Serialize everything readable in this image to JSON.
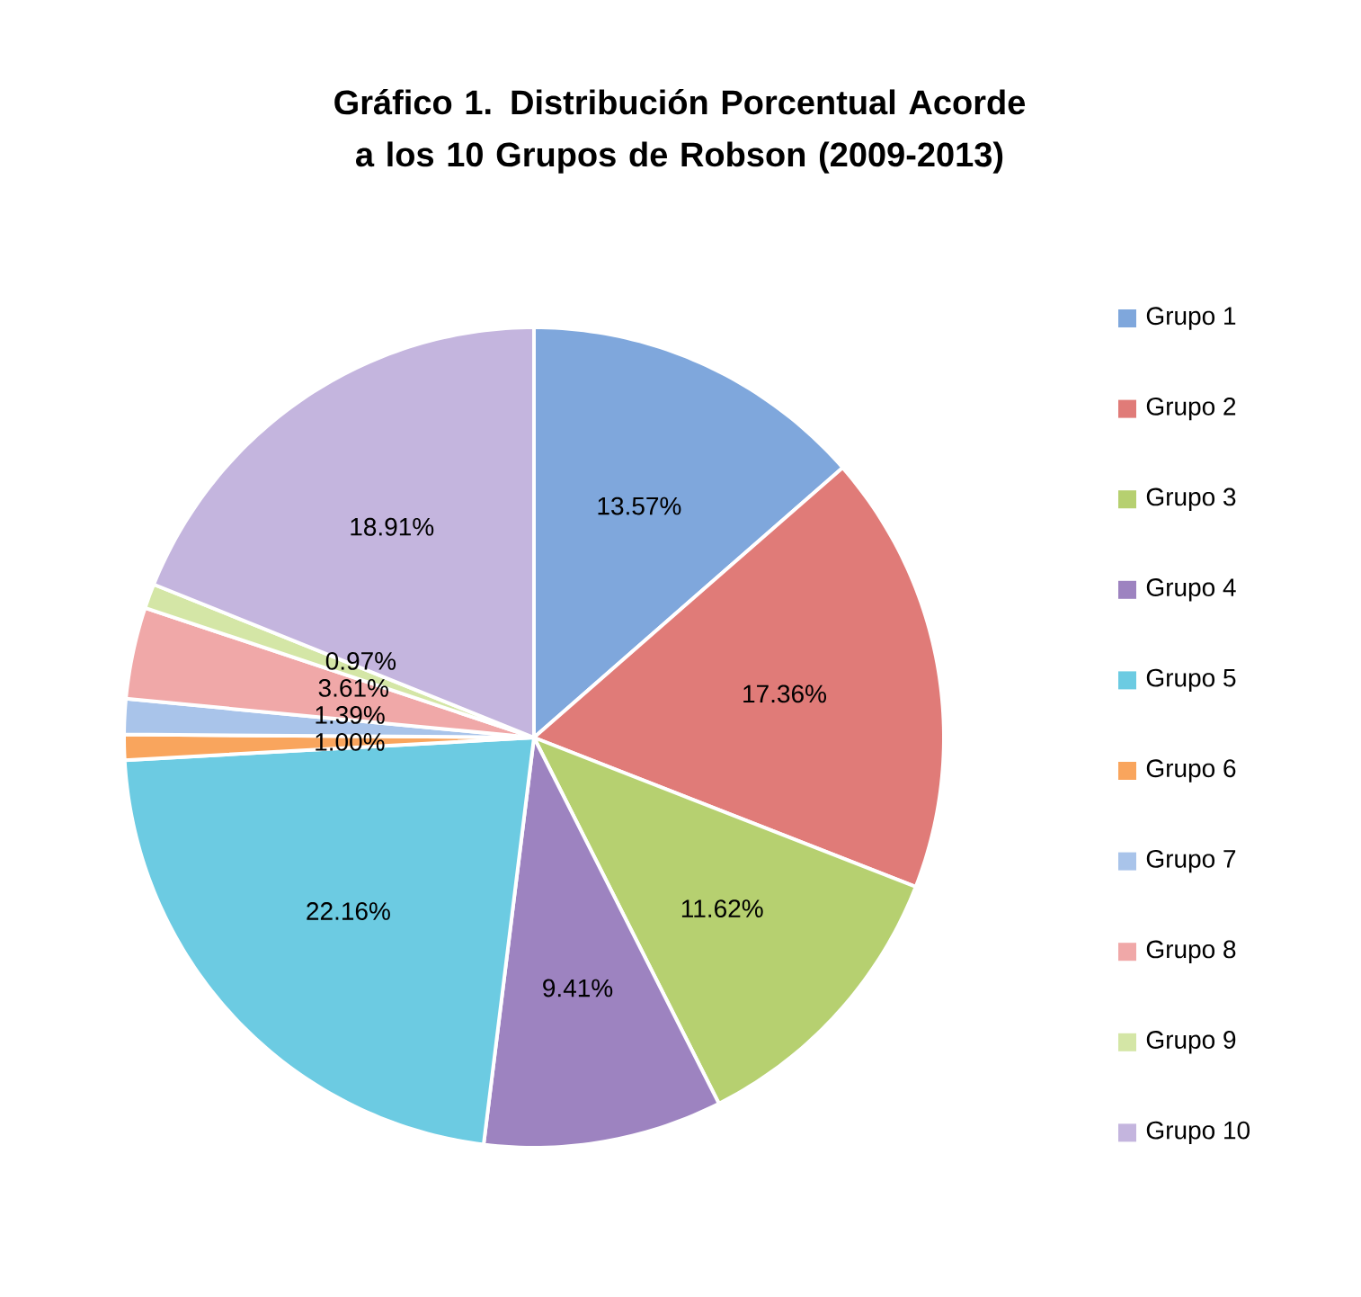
{
  "chart_data": {
    "type": "pie",
    "title": "Gráfico 1. Distribución Porcentual Acorde a los 10 Grupos de Robson (2009-2013)",
    "categories": [
      "Grupo 1",
      "Grupo 2",
      "Grupo 3",
      "Grupo 4",
      "Grupo 5",
      "Grupo 6",
      "Grupo 7",
      "Grupo 8",
      "Grupo 9",
      "Grupo 10"
    ],
    "values": [
      13.57,
      17.36,
      11.62,
      9.41,
      22.16,
      1.0,
      1.39,
      3.61,
      0.97,
      18.91
    ],
    "value_labels": [
      "13.57%",
      "17.36%",
      "11.62%",
      "9.41%",
      "22.16%",
      "1.00%",
      "1.39%",
      "3.61%",
      "0.97%",
      "18.91%"
    ],
    "colors": [
      "#7fa7dc",
      "#e07b78",
      "#b6d070",
      "#9d83c0",
      "#6ccbe2",
      "#f9a55d",
      "#a9c4ea",
      "#f0a8a8",
      "#d4e6a6",
      "#c4b5de"
    ],
    "legend": "right"
  }
}
